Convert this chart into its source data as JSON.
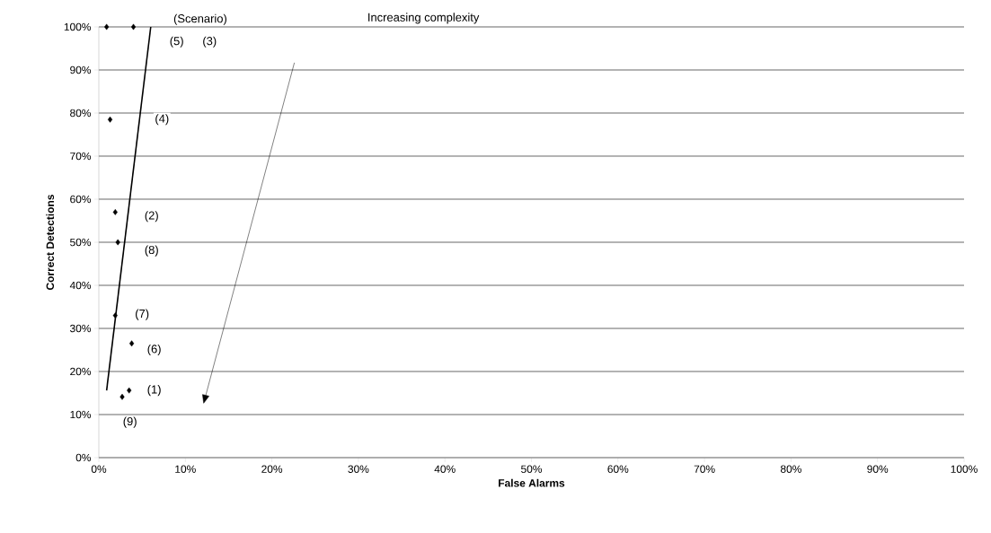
{
  "chart_data": {
    "type": "scatter",
    "xlabel": "False Alarms",
    "ylabel": "Correct Detections",
    "xlim": [
      0,
      100
    ],
    "ylim": [
      0,
      100
    ],
    "xticks": [
      {
        "value": 0,
        "label": "0%"
      },
      {
        "value": 10,
        "label": "10%"
      },
      {
        "value": 20,
        "label": "20%"
      },
      {
        "value": 30,
        "label": "30%"
      },
      {
        "value": 40,
        "label": "40%"
      },
      {
        "value": 50,
        "label": "50%"
      },
      {
        "value": 60,
        "label": "60%"
      },
      {
        "value": 70,
        "label": "70%"
      },
      {
        "value": 80,
        "label": "80%"
      },
      {
        "value": 90,
        "label": "90%"
      },
      {
        "value": 100,
        "label": "100%"
      }
    ],
    "yticks": [
      {
        "value": 0,
        "label": "0%"
      },
      {
        "value": 10,
        "label": "10%"
      },
      {
        "value": 20,
        "label": "20%"
      },
      {
        "value": 30,
        "label": "30%"
      },
      {
        "value": 40,
        "label": "40%"
      },
      {
        "value": 50,
        "label": "50%"
      },
      {
        "value": 60,
        "label": "60%"
      },
      {
        "value": 70,
        "label": "70%"
      },
      {
        "value": 80,
        "label": "80%"
      },
      {
        "value": 90,
        "label": "90%"
      },
      {
        "value": 100,
        "label": "100%"
      }
    ],
    "grid": "y",
    "series": [
      {
        "color": "#000000",
        "marker": "diamond",
        "x": [
          0.9,
          4.0,
          1.3,
          1.9,
          2.2,
          1.9,
          3.8,
          3.5,
          2.7
        ],
        "values": [
          100,
          100,
          78.5,
          57,
          50,
          33,
          26.5,
          15.6,
          14.1
        ]
      },
      {
        "type": "line",
        "color": "#000000",
        "line_style": "solid",
        "marker": "none",
        "x": [
          0.9,
          6.0
        ],
        "values": [
          15.6,
          100
        ]
      }
    ],
    "annotations": [
      "(Scenario)",
      "Increasing complexity",
      {
        "text": "(5)",
        "x": 9.0,
        "y": 96.5
      },
      {
        "text": "(3)",
        "x": 12.8,
        "y": 96.5
      },
      {
        "text": "(4)",
        "x": 7.3,
        "y": 78.5
      },
      {
        "text": "(2)",
        "x": 6.1,
        "y": 56
      },
      {
        "text": "(8)",
        "x": 6.1,
        "y": 48
      },
      {
        "text": "(7)",
        "x": 5.0,
        "y": 33.2
      },
      {
        "text": "(6)",
        "x": 6.4,
        "y": 25
      },
      {
        "text": "(1)",
        "x": 6.4,
        "y": 15.6
      },
      {
        "text": "(9)",
        "x": 3.6,
        "y": 8.2
      }
    ]
  }
}
